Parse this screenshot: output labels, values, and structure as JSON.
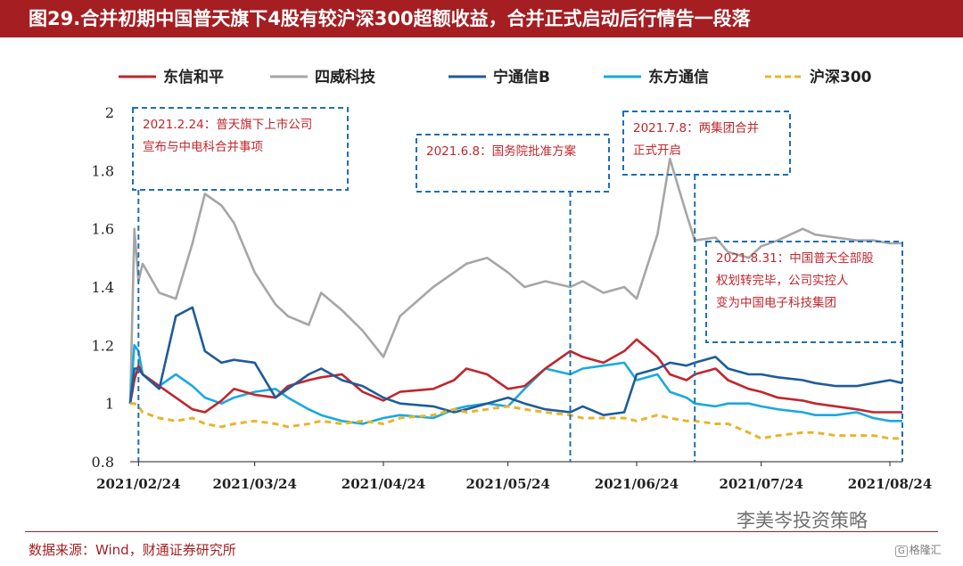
{
  "title": "图29.合并初期中国普天旗下4股有较沪深300超额收益，合并正式启动后行情告一段落",
  "source": "数据来源：Wind，财通证券研究所",
  "watermark": "李美岑投资策略",
  "logo_text": "格隆汇",
  "chart_data": {
    "type": "line",
    "x": [
      "2021-02-22",
      "2021-02-23",
      "2021-02-24",
      "2021-02-25",
      "2021-03-01",
      "2021-03-05",
      "2021-03-09",
      "2021-03-12",
      "2021-03-16",
      "2021-03-19",
      "2021-03-24",
      "2021-03-29",
      "2021-04-01",
      "2021-04-06",
      "2021-04-09",
      "2021-04-14",
      "2021-04-19",
      "2021-04-24",
      "2021-04-28",
      "2021-05-06",
      "2021-05-11",
      "2021-05-14",
      "2021-05-19",
      "2021-05-24",
      "2021-05-28",
      "2021-06-02",
      "2021-06-08",
      "2021-06-11",
      "2021-06-16",
      "2021-06-21",
      "2021-06-24",
      "2021-06-29",
      "2021-07-02",
      "2021-07-06",
      "2021-07-08",
      "2021-07-13",
      "2021-07-16",
      "2021-07-21",
      "2021-07-24",
      "2021-07-28",
      "2021-08-03",
      "2021-08-06",
      "2021-08-11",
      "2021-08-16",
      "2021-08-20",
      "2021-08-24",
      "2021-08-27"
    ],
    "x_ticks": [
      "2021/02/24",
      "2021/03/24",
      "2021/04/24",
      "2021/05/24",
      "2021/06/24",
      "2021/07/24",
      "2021/08/24"
    ],
    "series": [
      {
        "name": "东信和平",
        "color": "#c0272d",
        "dash": false,
        "values": [
          1.0,
          1.08,
          1.13,
          1.1,
          1.06,
          1.02,
          0.98,
          0.97,
          1.01,
          1.05,
          1.03,
          1.02,
          1.06,
          1.08,
          1.09,
          1.1,
          1.04,
          1.01,
          1.04,
          1.05,
          1.08,
          1.12,
          1.1,
          1.05,
          1.06,
          1.12,
          1.18,
          1.16,
          1.14,
          1.18,
          1.22,
          1.16,
          1.1,
          1.08,
          1.1,
          1.12,
          1.08,
          1.05,
          1.04,
          1.02,
          1.01,
          1.0,
          0.99,
          0.98,
          0.97,
          0.97,
          0.97
        ]
      },
      {
        "name": "四威科技",
        "color": "#a6a6a6",
        "dash": false,
        "values": [
          1.0,
          1.6,
          1.42,
          1.48,
          1.38,
          1.36,
          1.55,
          1.72,
          1.68,
          1.62,
          1.45,
          1.34,
          1.3,
          1.27,
          1.38,
          1.32,
          1.25,
          1.16,
          1.3,
          1.4,
          1.45,
          1.48,
          1.5,
          1.45,
          1.4,
          1.42,
          1.4,
          1.42,
          1.38,
          1.4,
          1.36,
          1.58,
          1.84,
          1.65,
          1.56,
          1.57,
          1.52,
          1.5,
          1.54,
          1.56,
          1.6,
          1.58,
          1.57,
          1.56,
          1.56,
          1.55,
          1.55
        ]
      },
      {
        "name": "宁通信B",
        "color": "#1f5c99",
        "dash": false,
        "values": [
          1.0,
          1.12,
          1.12,
          1.1,
          1.05,
          1.3,
          1.33,
          1.18,
          1.14,
          1.15,
          1.14,
          1.02,
          1.05,
          1.1,
          1.12,
          1.08,
          1.06,
          1.02,
          1.0,
          0.99,
          0.97,
          0.98,
          1.0,
          1.02,
          1.0,
          0.98,
          0.97,
          0.99,
          0.96,
          0.97,
          1.1,
          1.12,
          1.14,
          1.13,
          1.14,
          1.16,
          1.12,
          1.1,
          1.1,
          1.09,
          1.08,
          1.07,
          1.06,
          1.06,
          1.07,
          1.08,
          1.07
        ]
      },
      {
        "name": "东方通信",
        "color": "#1aa9e0",
        "dash": false,
        "values": [
          1.0,
          1.2,
          1.18,
          1.1,
          1.06,
          1.1,
          1.06,
          1.02,
          1.0,
          1.02,
          1.04,
          1.05,
          1.02,
          0.98,
          0.96,
          0.94,
          0.93,
          0.95,
          0.96,
          0.95,
          0.98,
          0.99,
          1.0,
          0.99,
          1.05,
          1.12,
          1.1,
          1.12,
          1.13,
          1.14,
          1.08,
          1.1,
          1.04,
          1.02,
          1.0,
          0.99,
          1.0,
          1.0,
          0.99,
          0.98,
          0.97,
          0.96,
          0.96,
          0.97,
          0.95,
          0.94,
          0.94
        ]
      },
      {
        "name": "沪深300",
        "color": "#e8b52a",
        "dash": true,
        "values": [
          1.0,
          1.0,
          0.99,
          0.97,
          0.95,
          0.94,
          0.95,
          0.93,
          0.92,
          0.93,
          0.94,
          0.93,
          0.92,
          0.93,
          0.94,
          0.93,
          0.94,
          0.93,
          0.95,
          0.96,
          0.98,
          0.97,
          0.98,
          0.99,
          0.98,
          0.97,
          0.96,
          0.95,
          0.95,
          0.95,
          0.94,
          0.96,
          0.95,
          0.94,
          0.94,
          0.93,
          0.93,
          0.9,
          0.88,
          0.89,
          0.9,
          0.9,
          0.89,
          0.89,
          0.89,
          0.88,
          0.88
        ]
      }
    ],
    "ylim": [
      0.8,
      2.0
    ],
    "y_ticks": [
      "0.8",
      "1",
      "1.2",
      "1.4",
      "1.6",
      "1.8",
      "2"
    ],
    "grid": false,
    "legend_position": "top",
    "annotations": [
      {
        "x": "2021-02-24",
        "text": "2021.2.24：普天旗下上市公司宣布与中电科合并事项",
        "lines": [
          "2021.2.24：普天旗下上市公司",
          "宣布与中电科合并事项"
        ]
      },
      {
        "x": "2021-06-08",
        "text": "2021.6.8：国务院批准方案",
        "lines": [
          "2021.6.8：国务院批准方案"
        ]
      },
      {
        "x": "2021-07-08",
        "text": "2021.7.8：两集团合并正式开启",
        "lines": [
          "2021.7.8：两集团合并",
          "正式开启"
        ]
      },
      {
        "x": "2021-08-31",
        "text": "2021.8.31：中国普天全部股权划转完毕，公司实控人变为中国电子科技集团",
        "lines": [
          "2021.8.31：中国普天全部股",
          "权划转完毕，公司实控人",
          "变为中国电子科技集团"
        ]
      }
    ]
  }
}
